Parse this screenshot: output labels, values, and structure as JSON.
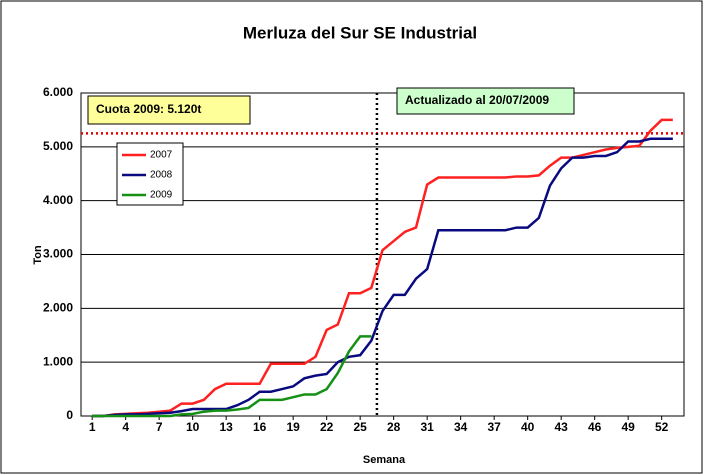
{
  "chart_data": {
    "type": "line",
    "title": "Merluza del Sur SE Industrial",
    "xlabel": "Semana",
    "ylabel": "Ton",
    "x": [
      1,
      2,
      3,
      4,
      5,
      6,
      7,
      8,
      9,
      10,
      11,
      12,
      13,
      14,
      15,
      16,
      17,
      18,
      19,
      20,
      21,
      22,
      23,
      24,
      25,
      26,
      27,
      28,
      29,
      30,
      31,
      32,
      33,
      34,
      35,
      36,
      37,
      38,
      39,
      40,
      41,
      42,
      43,
      44,
      45,
      46,
      47,
      48,
      49,
      50,
      51,
      52,
      53
    ],
    "xlim": [
      0,
      54
    ],
    "xticks": [
      1,
      4,
      7,
      10,
      13,
      16,
      19,
      22,
      25,
      28,
      31,
      34,
      37,
      40,
      43,
      46,
      49,
      52
    ],
    "ylim": [
      0,
      6000
    ],
    "yticks": [
      0,
      {
        "value": 1000,
        "label": "1.000"
      },
      {
        "value": 2000,
        "label": "2.000"
      },
      {
        "value": 3000,
        "label": "3.000"
      },
      {
        "value": 4000,
        "label": "4.000"
      },
      {
        "value": 5000,
        "label": "5.000"
      },
      {
        "value": 6000,
        "label": "6.000"
      }
    ],
    "grid": true,
    "series": [
      {
        "name": "2007",
        "color": "#ff2020",
        "values": [
          0,
          0,
          30,
          40,
          50,
          60,
          80,
          100,
          230,
          230,
          300,
          500,
          600,
          600,
          600,
          600,
          970,
          970,
          970,
          970,
          1100,
          1600,
          1700,
          2280,
          2280,
          2380,
          3080,
          3250,
          3420,
          3500,
          4300,
          4430,
          4430,
          4430,
          4430,
          4430,
          4430,
          4430,
          4450,
          4450,
          4470,
          4650,
          4800,
          4800,
          4850,
          4900,
          4950,
          4980,
          5000,
          5020,
          5300,
          5500,
          5500
        ]
      },
      {
        "name": "2008",
        "color": "#0a0a80",
        "values": [
          0,
          0,
          20,
          30,
          30,
          40,
          50,
          60,
          90,
          130,
          130,
          130,
          130,
          200,
          300,
          450,
          450,
          500,
          550,
          700,
          750,
          780,
          1000,
          1100,
          1130,
          1400,
          1950,
          2250,
          2250,
          2550,
          2730,
          3450,
          3450,
          3450,
          3450,
          3450,
          3450,
          3450,
          3500,
          3500,
          3680,
          4280,
          4600,
          4800,
          4800,
          4830,
          4830,
          4900,
          5100,
          5100,
          5150,
          5150,
          5150
        ]
      },
      {
        "name": "2009",
        "color": "#159015",
        "values": [
          0,
          0,
          0,
          0,
          0,
          0,
          0,
          0,
          30,
          40,
          80,
          100,
          100,
          120,
          150,
          300,
          300,
          300,
          350,
          400,
          400,
          500,
          800,
          1200,
          1480,
          1480,
          null,
          null,
          null,
          null,
          null,
          null,
          null,
          null,
          null,
          null,
          null,
          null,
          null,
          null,
          null,
          null,
          null,
          null,
          null,
          null,
          null,
          null,
          null,
          null,
          null,
          null,
          null
        ]
      }
    ],
    "reference_lines": [
      {
        "axis": "y",
        "value": 5250,
        "color": "#e00000"
      },
      {
        "axis": "x",
        "value": 26.5,
        "color": "#000000"
      }
    ],
    "annotations": [
      {
        "text": "Cuota 2009: 5.120t",
        "background": "#ffff99"
      },
      {
        "text": "Actualizado al 20/07/2009",
        "background": "#ccffcc"
      }
    ]
  }
}
